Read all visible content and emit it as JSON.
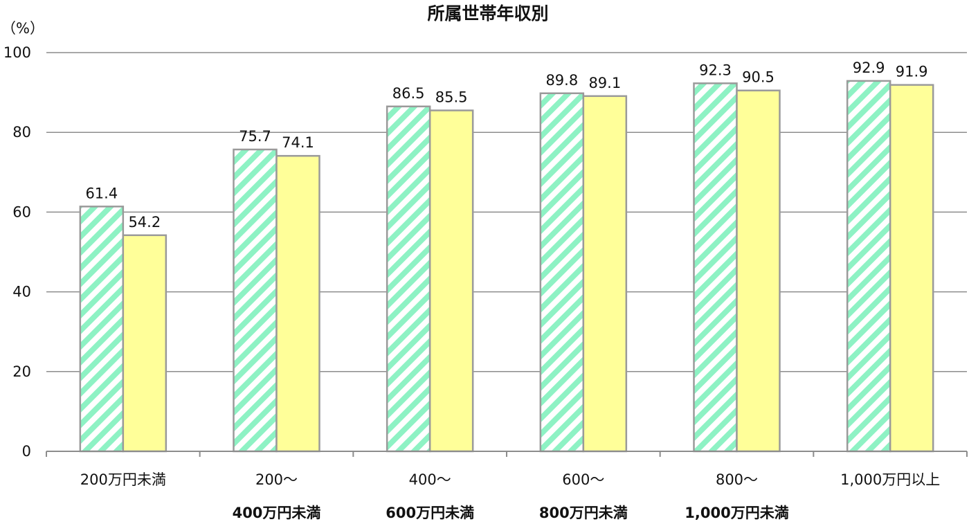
{
  "chart_data": {
    "type": "bar",
    "title": "所属世帯年収別",
    "y_unit_label": "（%）",
    "ylim": [
      0,
      100
    ],
    "y_ticks": [
      0,
      20,
      40,
      60,
      80,
      100
    ],
    "y_tick_labels": [
      "0",
      "20",
      "40",
      "60",
      "80",
      "100"
    ],
    "grid": true,
    "legend": "none",
    "categories": [
      {
        "line1": "200万円未満",
        "line2": ""
      },
      {
        "line1": "200～",
        "line2": "400万円未満"
      },
      {
        "line1": "400～",
        "line2": "600万円未満"
      },
      {
        "line1": "600～",
        "line2": "800万円未満"
      },
      {
        "line1": "800～",
        "line2": "1,000万円未満"
      },
      {
        "line1": "1,000万円以上",
        "line2": ""
      }
    ],
    "series": [
      {
        "pattern": "diagonal-stripes",
        "color": "#8ef2c4",
        "values": [
          61.4,
          75.7,
          86.5,
          89.8,
          92.3,
          92.9
        ],
        "labels": [
          "61.4",
          "75.7",
          "86.5",
          "89.8",
          "92.3",
          "92.9"
        ]
      },
      {
        "pattern": "solid",
        "color": "#ffff99",
        "values": [
          54.2,
          74.1,
          85.5,
          89.1,
          90.5,
          91.9
        ],
        "labels": [
          "54.2",
          "74.1",
          "85.5",
          "89.1",
          "90.5",
          "91.9"
        ]
      }
    ],
    "colors": {
      "gridline": "#8c8c8c",
      "bar_border": "#9a9a9a",
      "axis": "#8c8c8c"
    }
  }
}
